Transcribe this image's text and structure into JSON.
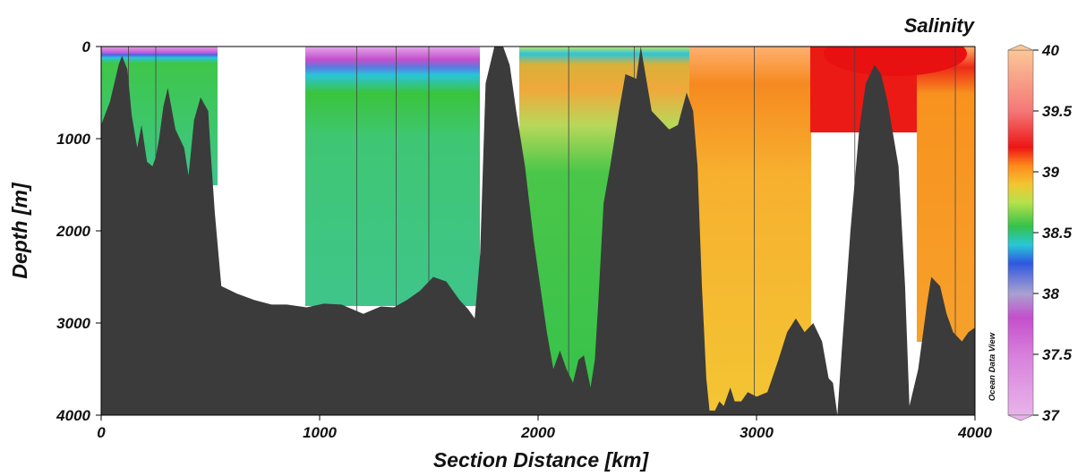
{
  "chart_data": {
    "type": "heatmap",
    "title": "Salinity",
    "xlabel": "Section Distance [km]",
    "ylabel": "Depth [m]",
    "xlim": [
      0,
      4000
    ],
    "ylim": [
      4000,
      0
    ],
    "x_ticks": [
      0,
      1000,
      2000,
      3000,
      4000
    ],
    "y_ticks": [
      0,
      1000,
      2000,
      3000,
      4000
    ],
    "x_tick_labels": [
      "0",
      "1000",
      "2000",
      "3000",
      "4000"
    ],
    "y_tick_labels": [
      "0",
      "1000",
      "2000",
      "3000",
      "4000"
    ],
    "colorbar": {
      "range": [
        37,
        40
      ],
      "ticks": [
        37,
        37.5,
        38,
        38.5,
        39,
        39.5,
        40
      ],
      "tick_labels": [
        "37",
        "37.5",
        "38",
        "38.5",
        "39",
        "39.5",
        "40"
      ],
      "stops": [
        {
          "value": 37.0,
          "color": "#e8b4ea"
        },
        {
          "value": 37.5,
          "color": "#d77fdc"
        },
        {
          "value": 37.8,
          "color": "#c44fcb"
        },
        {
          "value": 38.0,
          "color": "#a9a0d0"
        },
        {
          "value": 38.25,
          "color": "#2f58e0"
        },
        {
          "value": 38.4,
          "color": "#29c7d8"
        },
        {
          "value": 38.55,
          "color": "#33c24a"
        },
        {
          "value": 38.75,
          "color": "#b7e24a"
        },
        {
          "value": 38.9,
          "color": "#f3c531"
        },
        {
          "value": 39.05,
          "color": "#ff8a1a"
        },
        {
          "value": 39.2,
          "color": "#ee1515"
        },
        {
          "value": 39.5,
          "color": "#f47878"
        },
        {
          "value": 40.0,
          "color": "#fbc796"
        }
      ]
    },
    "station_distances_km": [
      125,
      250,
      1170,
      1350,
      1500,
      2140,
      2440,
      2990,
      3450,
      3910
    ],
    "bathymetry": {
      "distance_km": [
        0,
        40,
        80,
        95,
        120,
        140,
        165,
        185,
        210,
        235,
        250,
        265,
        285,
        305,
        340,
        380,
        400,
        425,
        455,
        490,
        500,
        520,
        550,
        620,
        700,
        780,
        850,
        940,
        1020,
        1100,
        1200,
        1280,
        1340,
        1400,
        1460,
        1520,
        1580,
        1640,
        1680,
        1710,
        1735,
        1760,
        1800,
        1840,
        1870,
        1900,
        1940,
        1980,
        2010,
        2040,
        2070,
        2100,
        2130,
        2160,
        2185,
        2210,
        2240,
        2260,
        2275,
        2300,
        2330,
        2370,
        2400,
        2450,
        2470,
        2520,
        2560,
        2600,
        2640,
        2680,
        2710,
        2730,
        2750,
        2770,
        2785,
        2810,
        2830,
        2850,
        2880,
        2900,
        2930,
        2960,
        3000,
        3050,
        3100,
        3140,
        3180,
        3220,
        3260,
        3300,
        3330,
        3350,
        3370,
        3390,
        3430,
        3470,
        3500,
        3540,
        3570,
        3600,
        3650,
        3680,
        3700,
        3740,
        3780,
        3800,
        3840,
        3870,
        3900,
        3940,
        3970,
        4000,
        4020
      ],
      "depth_m": [
        850,
        600,
        200,
        100,
        250,
        750,
        1100,
        850,
        1250,
        1300,
        1200,
        1000,
        650,
        450,
        900,
        1100,
        1400,
        800,
        550,
        700,
        1100,
        1800,
        2600,
        2680,
        2750,
        2800,
        2800,
        2830,
        2790,
        2800,
        2900,
        2820,
        2830,
        2750,
        2650,
        2500,
        2550,
        2750,
        2850,
        2950,
        2250,
        400,
        0,
        0,
        200,
        700,
        1300,
        2100,
        2600,
        3100,
        3500,
        3300,
        3500,
        3650,
        3400,
        3350,
        3700,
        3400,
        2800,
        1700,
        1300,
        700,
        300,
        350,
        0,
        700,
        800,
        900,
        850,
        500,
        700,
        1300,
        2600,
        3600,
        3950,
        3950,
        3850,
        3900,
        3700,
        3850,
        3850,
        3750,
        3800,
        3750,
        3400,
        3100,
        2950,
        3100,
        3000,
        3200,
        3600,
        3650,
        4000,
        3300,
        2000,
        900,
        400,
        200,
        300,
        600,
        1300,
        2600,
        3900,
        3500,
        2800,
        2500,
        2600,
        2900,
        3100,
        3200,
        3100,
        3050,
        3100
      ]
    }
  },
  "watermark": "Ocean Data View",
  "colors": {
    "seafloor": "#3b3b3b",
    "station_line": "#444444",
    "no_data": "#ffffff"
  }
}
